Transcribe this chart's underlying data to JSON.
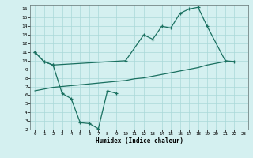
{
  "xlabel": "Humidex (Indice chaleur)",
  "background_color": "#d4f0f0",
  "grid_color": "#aad8d8",
  "line_color": "#1a7060",
  "xlim": [
    -0.5,
    23.5
  ],
  "ylim": [
    2,
    16.5
  ],
  "xticks": [
    0,
    1,
    2,
    3,
    4,
    5,
    6,
    7,
    8,
    9,
    10,
    11,
    12,
    13,
    14,
    15,
    16,
    17,
    18,
    19,
    20,
    21,
    22,
    23
  ],
  "yticks": [
    2,
    3,
    4,
    5,
    6,
    7,
    8,
    9,
    10,
    11,
    12,
    13,
    14,
    15,
    16
  ],
  "line1_x": [
    0,
    1,
    2,
    10,
    12,
    13,
    14,
    15,
    16,
    17,
    18,
    19,
    21,
    22
  ],
  "line1_y": [
    11,
    9.9,
    9.5,
    10,
    13,
    12.5,
    14,
    13.8,
    15.5,
    16,
    16.2,
    14,
    10,
    9.9
  ],
  "line2_x": [
    0,
    1,
    2,
    3,
    4,
    5,
    6,
    7,
    8,
    9
  ],
  "line2_y": [
    11,
    9.9,
    9.5,
    6.2,
    5.6,
    2.8,
    2.7,
    2.1,
    6.5,
    6.2
  ],
  "line3_x": [
    0,
    1,
    2,
    3,
    4,
    5,
    6,
    7,
    8,
    9,
    10,
    11,
    12,
    13,
    14,
    15,
    16,
    17,
    18,
    19,
    20,
    21,
    22
  ],
  "line3_y": [
    6.5,
    6.7,
    6.9,
    7.0,
    7.1,
    7.2,
    7.3,
    7.4,
    7.5,
    7.6,
    7.7,
    7.9,
    8.0,
    8.2,
    8.4,
    8.6,
    8.8,
    9.0,
    9.2,
    9.5,
    9.7,
    9.9,
    9.9
  ]
}
